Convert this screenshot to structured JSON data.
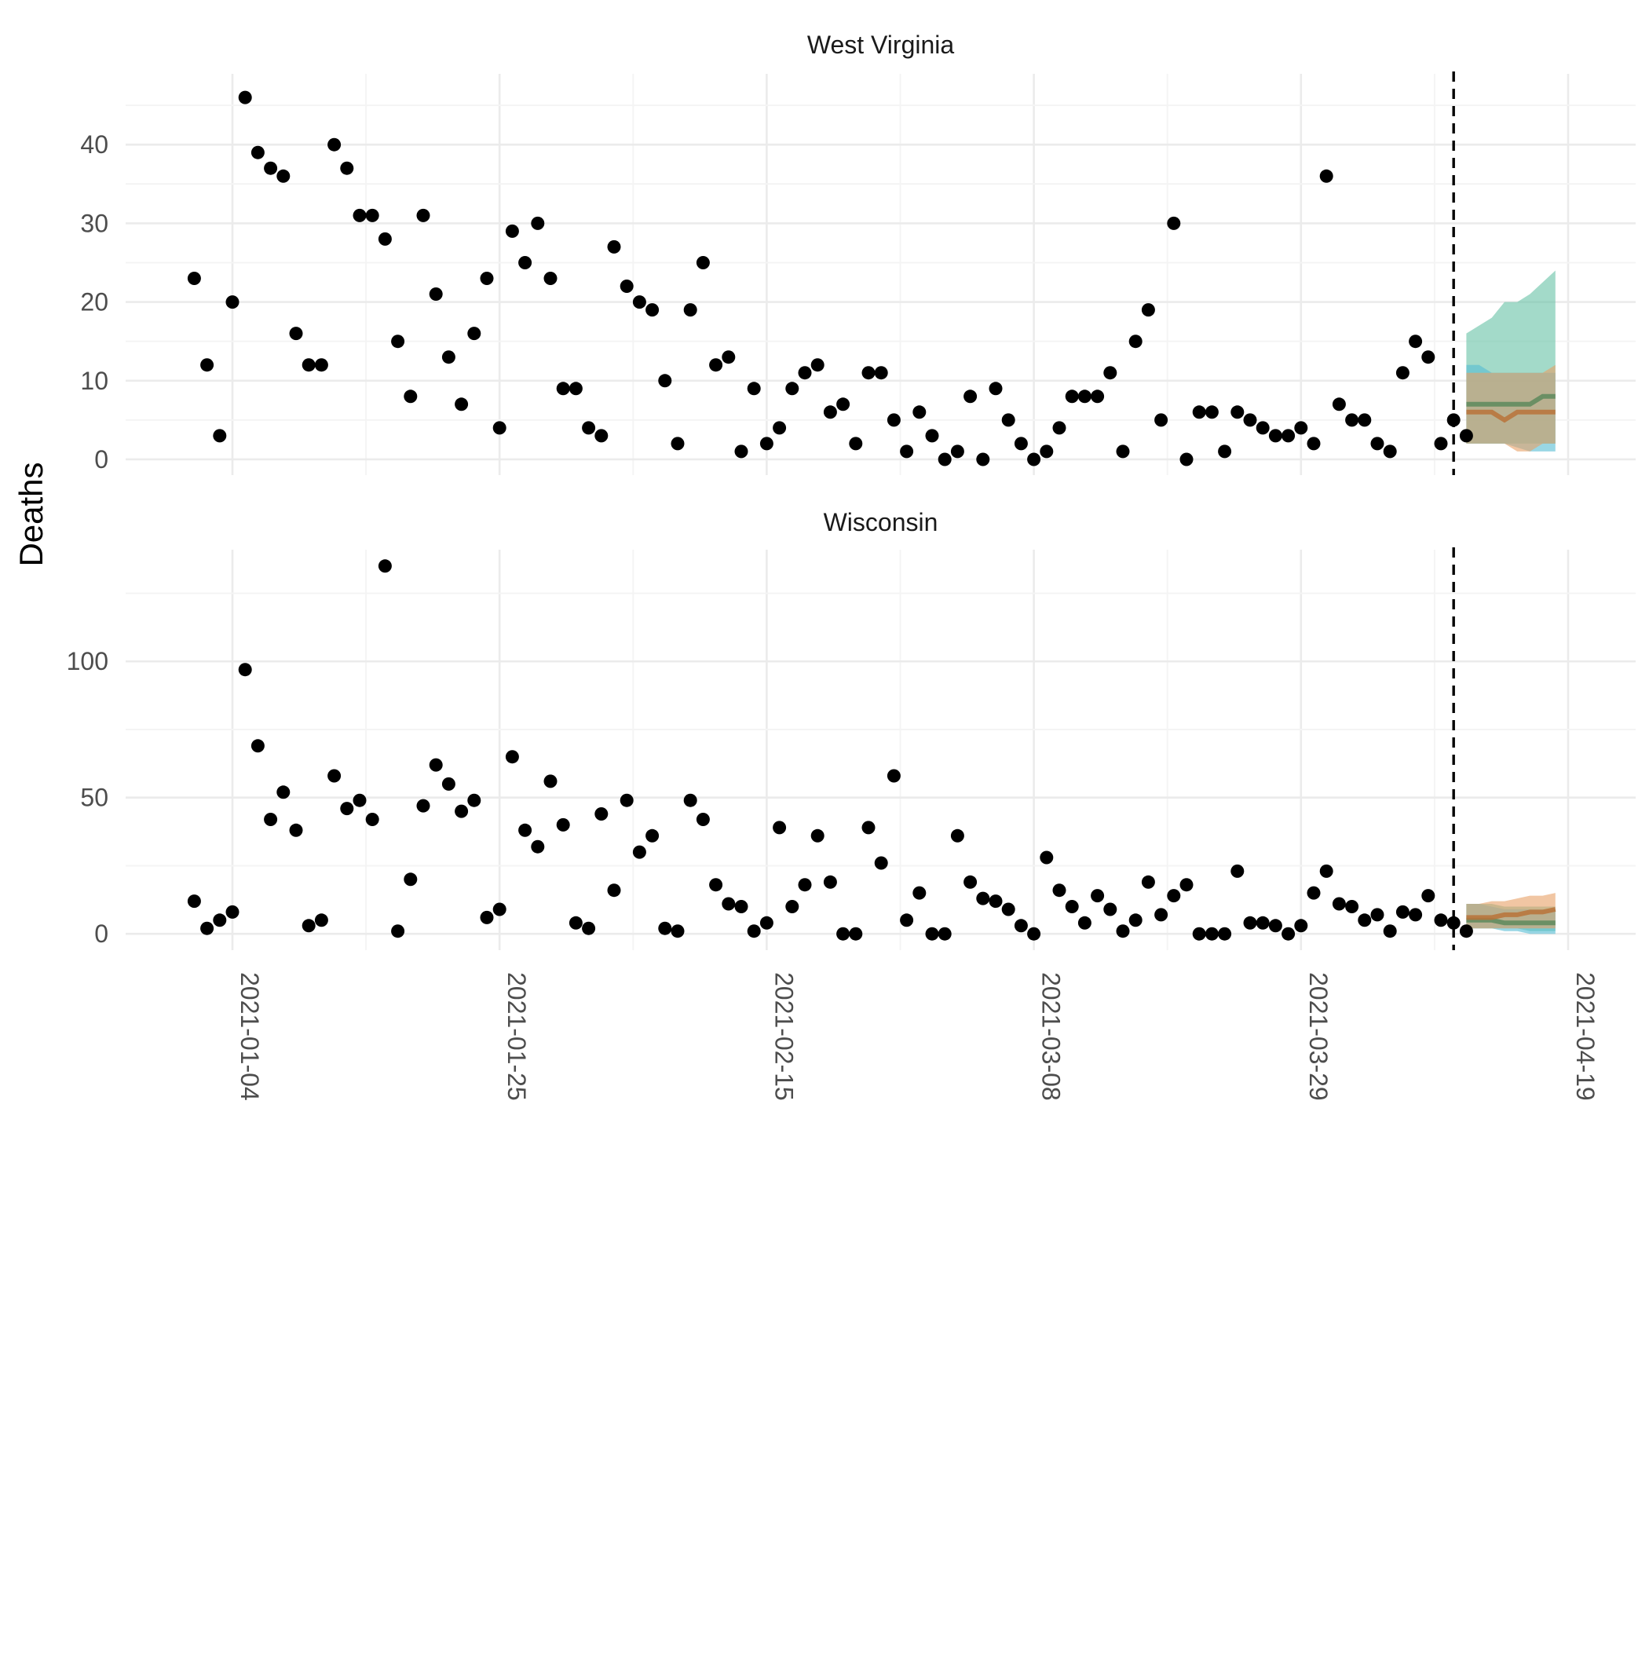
{
  "chart_data": {
    "type": "scatter",
    "ylabel": "Deaths",
    "x_tick_labels": [
      "2021-01-04",
      "2021-01-25",
      "2021-02-15",
      "2021-03-08",
      "2021-03-29",
      "2021-04-19"
    ],
    "forecast_start": "2021-04-10",
    "grid": true,
    "colors": {
      "points": "#000000",
      "grid_major": "#ebebeb",
      "grid_minor": "#f4f4f4",
      "band_green": "#66c2a5",
      "band_blue": "#55bcd4",
      "band_orange": "#e8a066",
      "line_green": "#5d8a5d",
      "line_orange": "#b8733a",
      "vline": "#000000"
    },
    "panels": [
      {
        "title": "West Virginia",
        "ylim": [
          -2,
          49
        ],
        "yticks": [
          0,
          10,
          20,
          30,
          40
        ],
        "start_date": "2021-01-01",
        "values": [
          23,
          12,
          3,
          20,
          46,
          39,
          37,
          36,
          16,
          12,
          12,
          40,
          37,
          31,
          31,
          28,
          15,
          8,
          31,
          21,
          13,
          7,
          16,
          23,
          4,
          29,
          25,
          30,
          23,
          9,
          9,
          4,
          3,
          27,
          22,
          20,
          19,
          10,
          2,
          19,
          25,
          12,
          13,
          1,
          9,
          2,
          4,
          9,
          11,
          12,
          6,
          7,
          2,
          11,
          11,
          5,
          1,
          6,
          3,
          0,
          1,
          8,
          0,
          9,
          5,
          2,
          0,
          1,
          4,
          8,
          8,
          8,
          11,
          1,
          15,
          19,
          5,
          30,
          0,
          6,
          6,
          1,
          6,
          5,
          4,
          3,
          3,
          4,
          2,
          36,
          7,
          5,
          5,
          2,
          1,
          11,
          15,
          13,
          2,
          5,
          3
        ],
        "forecast": {
          "dates": [
            "2021-04-11",
            "2021-04-12",
            "2021-04-13",
            "2021-04-14",
            "2021-04-15",
            "2021-04-16",
            "2021-04-17",
            "2021-04-18"
          ],
          "bands": [
            {
              "color": "band_green",
              "lower": [
                2,
                2,
                2,
                2,
                2,
                2,
                2,
                2
              ],
              "upper": [
                16,
                17,
                18,
                20,
                20,
                21,
                22.5,
                24
              ]
            },
            {
              "color": "band_blue",
              "lower": [
                2,
                2,
                2,
                2,
                1.5,
                1,
                1,
                1
              ],
              "upper": [
                12,
                12,
                11,
                11,
                11,
                11,
                11,
                11
              ]
            },
            {
              "color": "band_orange",
              "lower": [
                2,
                2,
                2,
                2,
                1,
                1,
                2,
                2
              ],
              "upper": [
                11,
                11,
                11,
                11,
                11,
                11,
                11,
                12
              ]
            }
          ],
          "lines": [
            {
              "color": "line_green",
              "values": [
                7,
                7,
                7,
                7,
                7,
                7,
                8,
                8
              ]
            },
            {
              "color": "line_orange",
              "values": [
                6,
                6,
                6,
                5,
                6,
                6,
                6,
                6
              ]
            }
          ]
        }
      },
      {
        "title": "Wisconsin",
        "ylim": [
          -6,
          141
        ],
        "yticks": [
          0,
          50,
          100
        ],
        "start_date": "2021-01-01",
        "values": [
          12,
          2,
          5,
          8,
          97,
          69,
          42,
          52,
          38,
          3,
          5,
          58,
          46,
          49,
          42,
          135,
          1,
          20,
          47,
          62,
          55,
          45,
          49,
          6,
          9,
          65,
          38,
          32,
          56,
          40,
          4,
          2,
          44,
          16,
          49,
          30,
          36,
          2,
          1,
          49,
          42,
          18,
          11,
          10,
          1,
          4,
          39,
          10,
          18,
          36,
          19,
          0,
          0,
          39,
          26,
          58,
          5,
          15,
          0,
          0,
          36,
          19,
          13,
          12,
          9,
          3,
          0,
          28,
          16,
          10,
          4,
          14,
          9,
          1,
          5,
          19,
          7,
          14,
          18,
          0,
          0,
          0,
          23,
          4,
          4,
          3,
          0,
          3,
          15,
          23,
          11,
          10,
          5,
          7,
          1,
          8,
          7,
          14,
          5,
          4,
          1
        ],
        "forecast": {
          "dates": [
            "2021-04-11",
            "2021-04-12",
            "2021-04-13",
            "2021-04-14",
            "2021-04-15",
            "2021-04-16",
            "2021-04-17",
            "2021-04-18"
          ],
          "bands": [
            {
              "color": "band_green",
              "lower": [
                2,
                2,
                2,
                2,
                2,
                1,
                1,
                1
              ],
              "upper": [
                11,
                11,
                11,
                10,
                10,
                10,
                10,
                10
              ]
            },
            {
              "color": "band_blue",
              "lower": [
                2,
                2,
                2,
                1,
                1,
                0,
                0,
                0
              ],
              "upper": [
                11,
                11,
                10,
                9,
                9,
                9,
                9,
                9
              ]
            },
            {
              "color": "band_orange",
              "lower": [
                2,
                2,
                2,
                2,
                2,
                2,
                2,
                2
              ],
              "upper": [
                11,
                11,
                12,
                12,
                13,
                14,
                14,
                15
              ]
            }
          ],
          "lines": [
            {
              "color": "line_green",
              "values": [
                5,
                5,
                5,
                4,
                4,
                4,
                4,
                4
              ]
            },
            {
              "color": "line_orange",
              "values": [
                6,
                6,
                6,
                7,
                7,
                8,
                8,
                9
              ]
            }
          ]
        }
      }
    ]
  }
}
